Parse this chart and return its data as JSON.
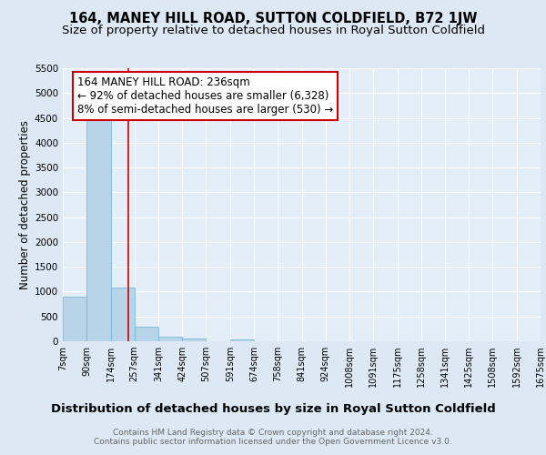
{
  "title": "164, MANEY HILL ROAD, SUTTON COLDFIELD, B72 1JW",
  "subtitle": "Size of property relative to detached houses in Royal Sutton Coldfield",
  "xlabel": "Distribution of detached houses by size in Royal Sutton Coldfield",
  "ylabel": "Number of detached properties",
  "annotation_line1": "164 MANEY HILL ROAD: 236sqm",
  "annotation_line2": "← 92% of detached houses are smaller (6,328)",
  "annotation_line3": "8% of semi-detached houses are larger (530) →",
  "footer_line1": "Contains HM Land Registry data © Crown copyright and database right 2024.",
  "footer_line2": "Contains public sector information licensed under the Open Government Licence v3.0.",
  "bar_edges": [
    7,
    90,
    174,
    257,
    341,
    424,
    507,
    591,
    674,
    758,
    841,
    924,
    1008,
    1091,
    1175,
    1258,
    1341,
    1425,
    1508,
    1592,
    1675
  ],
  "bar_heights": [
    900,
    4580,
    1080,
    290,
    90,
    60,
    0,
    45,
    0,
    0,
    0,
    0,
    0,
    0,
    0,
    0,
    0,
    0,
    0,
    0
  ],
  "bar_color": "#b8d4e8",
  "bar_edge_color": "#7ab8d8",
  "red_line_x": 236,
  "ylim": [
    0,
    5500
  ],
  "yticks": [
    0,
    500,
    1000,
    1500,
    2000,
    2500,
    3000,
    3500,
    4000,
    4500,
    5000,
    5500
  ],
  "bg_color": "#dce8f4",
  "plot_bg_color": "#e4eef8",
  "annotation_box_color": "#ffffff",
  "annotation_box_edge": "#cc0000",
  "red_line_color": "#cc0000",
  "title_fontsize": 10.5,
  "subtitle_fontsize": 9.5,
  "xlabel_fontsize": 9.5,
  "ylabel_fontsize": 8.5,
  "tick_fontsize": 7.5,
  "annotation_fontsize": 8.5,
  "footer_fontsize": 6.5
}
